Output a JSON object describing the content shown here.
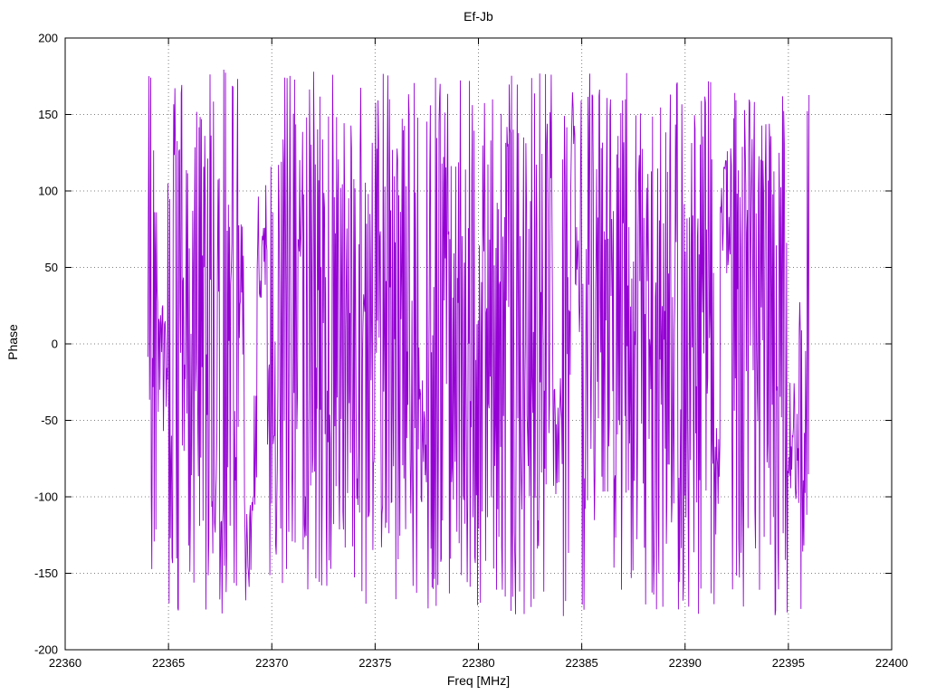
{
  "chart_data": {
    "type": "line",
    "title": "Ef-Jb",
    "xlabel": "Freq [MHz]",
    "ylabel": "Phase",
    "xlim": [
      22360,
      22400
    ],
    "ylim": [
      -200,
      200
    ],
    "xticks": [
      22360,
      22365,
      22370,
      22375,
      22380,
      22385,
      22390,
      22395,
      22400
    ],
    "x_tick_labels": [
      "22360",
      "22365",
      "22370",
      "22375",
      "22380",
      "22385",
      "22390",
      "22395",
      "22400"
    ],
    "yticks": [
      -200,
      -150,
      -100,
      -50,
      0,
      50,
      100,
      150,
      200
    ],
    "y_tick_labels": [
      "-200",
      "-150",
      "-100",
      "-50",
      "0",
      "50",
      "100",
      "150",
      "200"
    ],
    "grid": true,
    "grid_style": "dotted",
    "legend": "none",
    "border_color": "#000000",
    "grid_color": "#808080",
    "series": [
      {
        "name": "phase",
        "color": "#9400D3",
        "x_start": 22364.0,
        "x_end": 22396.0,
        "n_points": 1150,
        "y_min": -180,
        "y_max": 180,
        "distribution": "pseudo-random wrapped interferometric phase, uniform noise with short coherent patches",
        "seed": 42
      }
    ],
    "note": "Dense noisy visibility phase vs frequency (VLBI baseline Ef-Jb); individual samples not resolvable at screenshot scale, values wrap within ±180 deg."
  }
}
